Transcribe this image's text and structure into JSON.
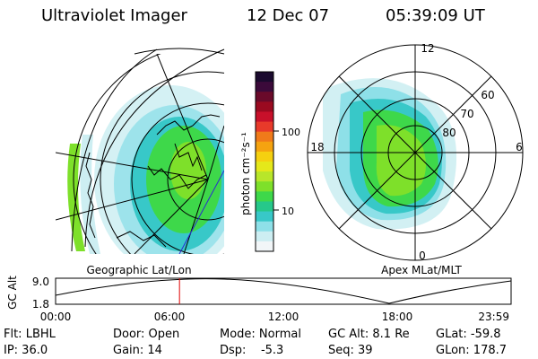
{
  "header": {
    "title": "Ultraviolet Imager",
    "date": "12 Dec 07",
    "time": "05:39:09 UT"
  },
  "left_panel": {
    "label": "Geographic Lat/Lon"
  },
  "right_panel": {
    "label": "Apex MLat/MLT",
    "mlt_labels": [
      "12",
      "18",
      "6",
      "0"
    ],
    "lat_labels": [
      "60",
      "70",
      "80"
    ]
  },
  "colorbar": {
    "unit_label": "photon cm⁻²s⁻¹",
    "tick_labels": [
      "100",
      "10"
    ],
    "colors": [
      "#1a0a2e",
      "#3b0a3a",
      "#6a0a2a",
      "#9a0a20",
      "#c8102a",
      "#e83a2a",
      "#f07a1a",
      "#f5a310",
      "#f5d010",
      "#e5e81a",
      "#b8e62a",
      "#7ee02a",
      "#3ed84a",
      "#26c88a",
      "#38c8c8",
      "#8ee0e8",
      "#cdeef2",
      "#f2f6f8"
    ]
  },
  "altitude_plot": {
    "axis_title": "GC Alt",
    "y_ticks": [
      "9.0",
      "1.8"
    ],
    "x_ticks": [
      "00:00",
      "06:00",
      "12:00",
      "18:00",
      "23:59"
    ],
    "current_time_fraction": 0.272,
    "marker_color": "#e00000"
  },
  "status": {
    "filter": "Flt: LBHL",
    "ip": "IP: 36.0",
    "door": "Door: Open",
    "gain": "Gain: 14",
    "mode": "Mode: Normal",
    "dsp": "Dsp:    -5.3",
    "gc_alt": "GC Alt: 8.1 Re",
    "seq": "Seq: 39",
    "glat": "GLat: -59.8",
    "glon": "GLon: 178.7"
  }
}
